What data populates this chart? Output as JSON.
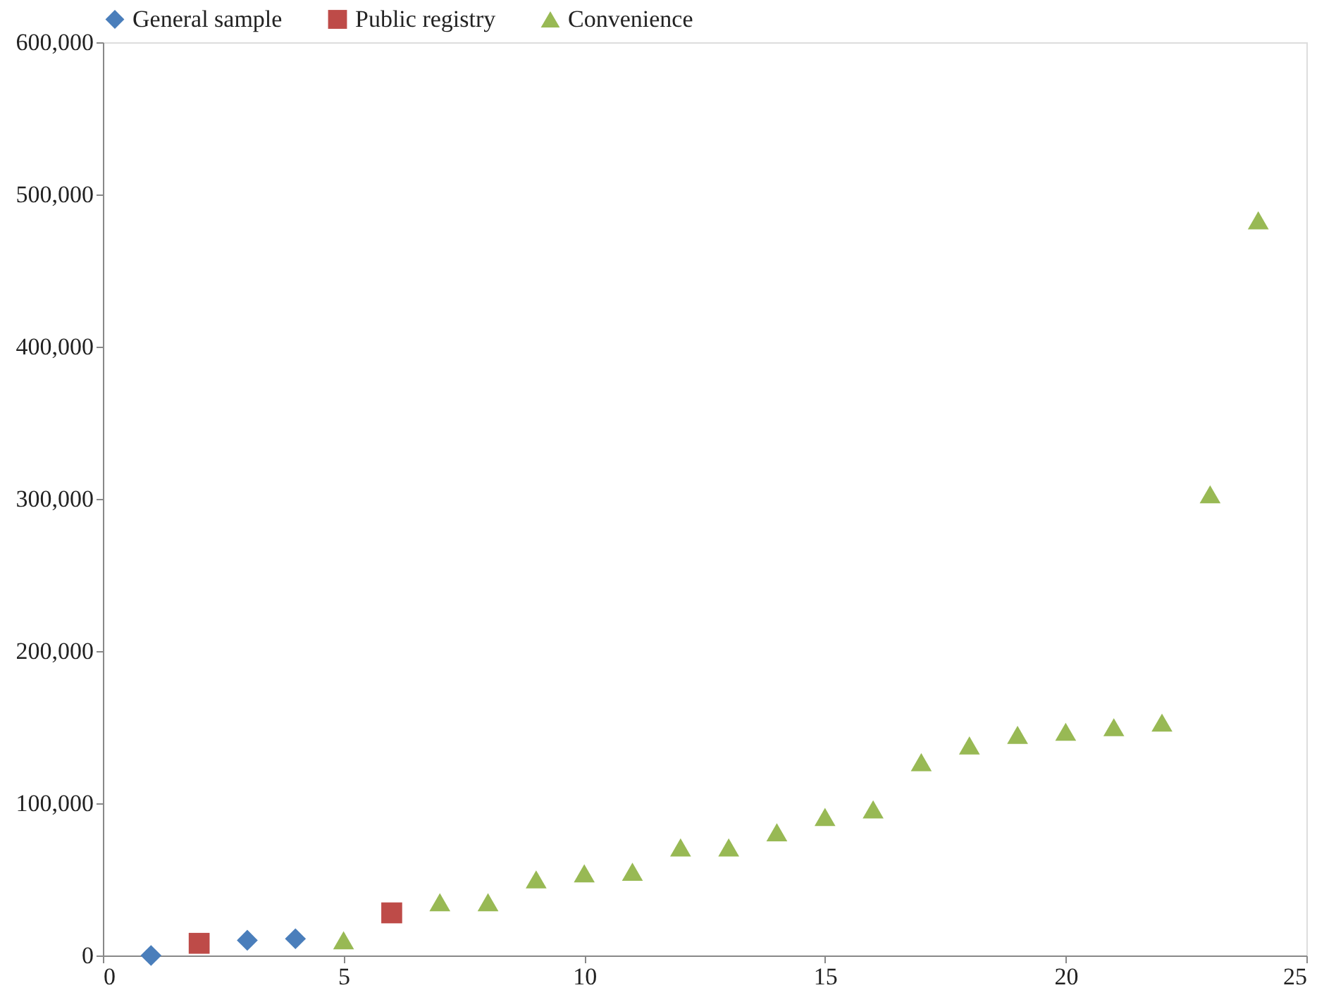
{
  "chart_data": {
    "type": "scatter",
    "legend": "top",
    "grid": false,
    "xlim": [
      0,
      25
    ],
    "xticks": [
      0,
      5,
      10,
      15,
      20,
      25
    ],
    "ylim": [
      0,
      600000
    ],
    "yticks": [
      {
        "value": 0,
        "label": "0"
      },
      {
        "value": 100000,
        "label": "100,000"
      },
      {
        "value": 200000,
        "label": "200,000"
      },
      {
        "value": 300000,
        "label": "300,000"
      },
      {
        "value": 400000,
        "label": "400,000"
      },
      {
        "value": 500000,
        "label": "500,000"
      },
      {
        "value": 600000,
        "label": "600,000"
      }
    ],
    "series": [
      {
        "name": "General sample",
        "color": "#4a7ebb",
        "marker": "diamond",
        "x": [
          1,
          3,
          4
        ],
        "values": [
          0,
          10000,
          11000
        ]
      },
      {
        "name": "Public registry",
        "color": "#be4b48",
        "marker": "square",
        "x": [
          2,
          6
        ],
        "values": [
          8000,
          28000
        ]
      },
      {
        "name": "Convenience",
        "color": "#98b954",
        "marker": "triangle",
        "x": [
          5,
          7,
          8,
          9,
          10,
          11,
          12,
          13,
          14,
          15,
          16,
          17,
          18,
          19,
          20,
          21,
          22,
          23,
          24
        ],
        "values": [
          10000,
          35000,
          35000,
          50000,
          54000,
          55000,
          71000,
          71000,
          81000,
          91000,
          96000,
          127000,
          138000,
          145000,
          147000,
          150000,
          153000,
          303000,
          483000
        ]
      }
    ]
  }
}
